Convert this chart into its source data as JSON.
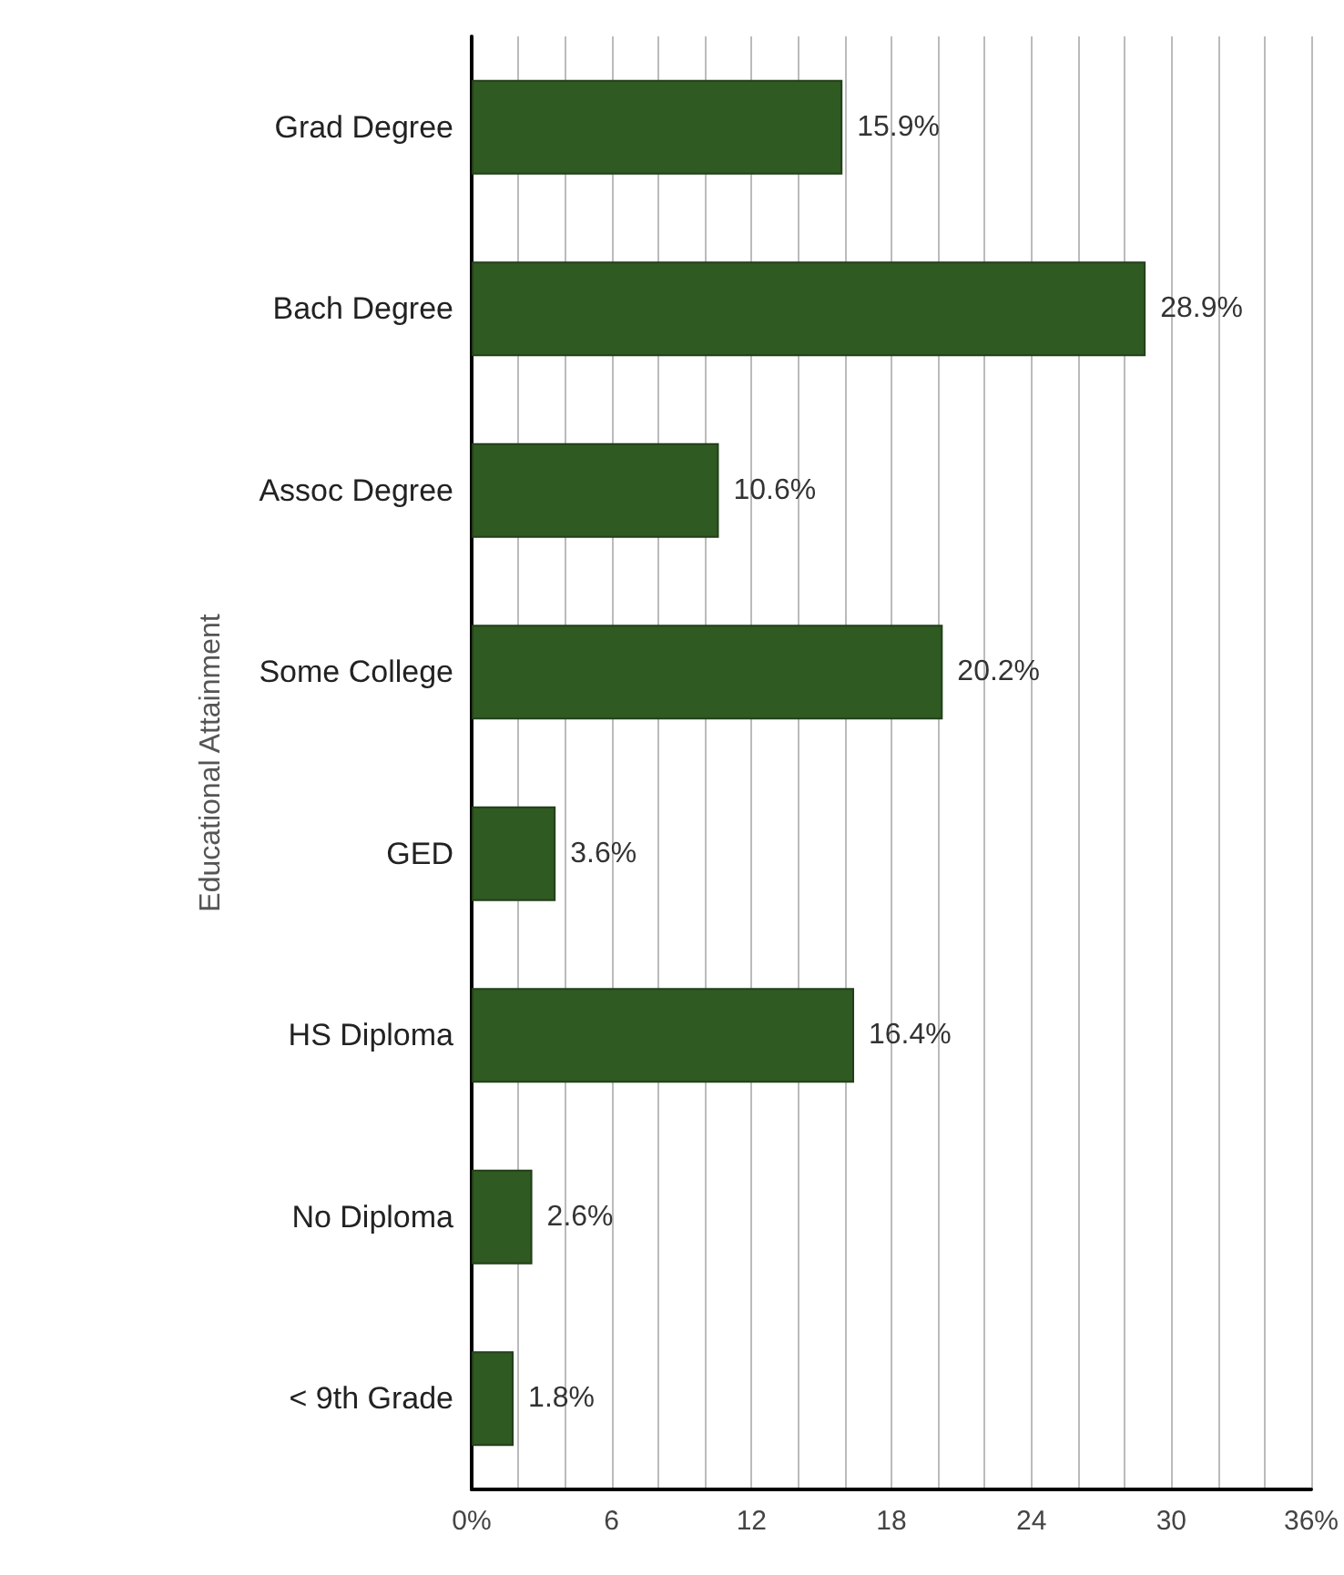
{
  "chart_data": {
    "type": "bar",
    "orientation": "horizontal",
    "ylabel": "Educational Attainment",
    "categories": [
      "Grad Degree",
      "Bach Degree",
      "Assoc Degree",
      "Some College",
      "GED",
      "HS Diploma",
      "No Diploma",
      "< 9th Grade"
    ],
    "values": [
      15.9,
      28.9,
      10.6,
      20.2,
      3.6,
      16.4,
      2.6,
      1.8
    ],
    "value_labels": [
      "15.9%",
      "28.9%",
      "10.6%",
      "20.2%",
      "3.6%",
      "16.4%",
      "2.6%",
      "1.8%"
    ],
    "color": "#2f5a22",
    "xlim": [
      0,
      36
    ],
    "xticks": [
      {
        "value": 0,
        "label": "0%"
      },
      {
        "value": 2,
        "label": null
      },
      {
        "value": 4,
        "label": null
      },
      {
        "value": 6,
        "label": "6"
      },
      {
        "value": 8,
        "label": null
      },
      {
        "value": 10,
        "label": null
      },
      {
        "value": 12,
        "label": "12"
      },
      {
        "value": 14,
        "label": null
      },
      {
        "value": 16,
        "label": null
      },
      {
        "value": 18,
        "label": "18"
      },
      {
        "value": 20,
        "label": null
      },
      {
        "value": 22,
        "label": null
      },
      {
        "value": 24,
        "label": "24"
      },
      {
        "value": 26,
        "label": null
      },
      {
        "value": 28,
        "label": null
      },
      {
        "value": 30,
        "label": "30"
      },
      {
        "value": 32,
        "label": null
      },
      {
        "value": 34,
        "label": null
      },
      {
        "value": 36,
        "label": "36%"
      }
    ],
    "grid": "x"
  }
}
